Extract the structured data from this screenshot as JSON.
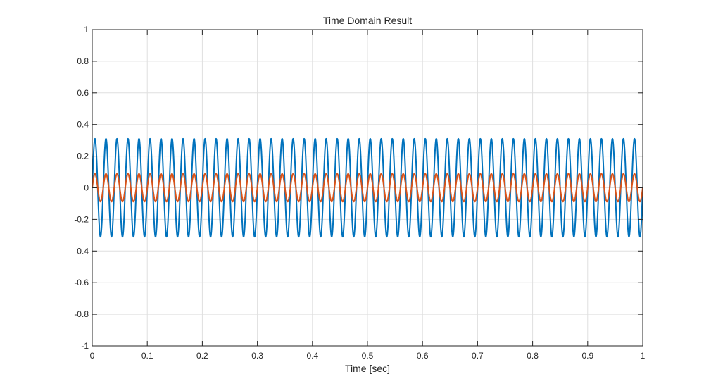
{
  "chart_data": {
    "type": "line",
    "title": "Time Domain Result",
    "xlabel": "Time [sec]",
    "ylabel": "",
    "xlim": [
      0,
      1
    ],
    "ylim": [
      -1,
      1
    ],
    "grid": true,
    "legend": "none",
    "xticks": [
      "0",
      "0.1",
      "0.2",
      "0.3",
      "0.4",
      "0.5",
      "0.6",
      "0.7",
      "0.8",
      "0.9",
      "1"
    ],
    "yticks": [
      "-1",
      "-0.8",
      "-0.6",
      "-0.4",
      "-0.2",
      "0",
      "0.2",
      "0.4",
      "0.6",
      "0.8",
      "1"
    ],
    "series": [
      {
        "color": "#0072BD",
        "amplitude": 0.31,
        "frequency_hz": 50,
        "cycles_shown": 50
      },
      {
        "color": "#D95319",
        "amplitude": 0.088,
        "frequency_hz": 50,
        "cycles_shown": 50
      }
    ]
  }
}
